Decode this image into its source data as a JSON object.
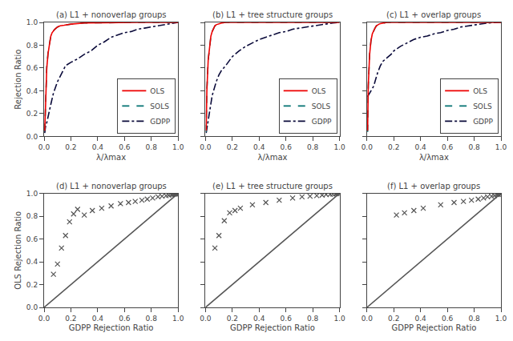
{
  "chart_data": [
    {
      "type": "line",
      "title": "(a) L1 + nonoverlap groups",
      "xlabel": "λ/λmax",
      "ylabel": "Rejection Ratio",
      "series": [
        {
          "name": "OLS",
          "color": "#ee0000",
          "line_style": "solid",
          "x": [
            0.005,
            0.01,
            0.02,
            0.03,
            0.04,
            0.05,
            0.06,
            0.07,
            0.08,
            0.1,
            0.12,
            0.15,
            0.2,
            0.3,
            0.5,
            0.7,
            1.0
          ],
          "values": [
            0.05,
            0.3,
            0.6,
            0.73,
            0.82,
            0.88,
            0.91,
            0.93,
            0.94,
            0.96,
            0.97,
            0.975,
            0.985,
            0.995,
            1.0,
            1.0,
            1.0
          ]
        },
        {
          "name": "SOLS",
          "color": "#007070",
          "line_style": "dash",
          "x": [
            0.005,
            0.01,
            0.02,
            0.03,
            0.04,
            0.05,
            0.06,
            0.07,
            0.08,
            0.1,
            0.12,
            0.15,
            0.2,
            0.3,
            0.5,
            0.7,
            1.0
          ],
          "values": [
            0.05,
            0.31,
            0.61,
            0.74,
            0.83,
            0.88,
            0.91,
            0.93,
            0.94,
            0.96,
            0.97,
            0.975,
            0.985,
            0.995,
            1.0,
            1.0,
            1.0
          ]
        },
        {
          "name": "GDPP",
          "color": "#0a0a3a",
          "line_style": "dashdot",
          "x": [
            0.005,
            0.01,
            0.02,
            0.03,
            0.05,
            0.07,
            0.1,
            0.13,
            0.16,
            0.2,
            0.25,
            0.3,
            0.35,
            0.4,
            0.45,
            0.5,
            0.55,
            0.6,
            0.65,
            0.7,
            0.75,
            0.8,
            0.85,
            0.9,
            0.95,
            1.0
          ],
          "values": [
            0.03,
            0.08,
            0.12,
            0.18,
            0.28,
            0.38,
            0.48,
            0.55,
            0.62,
            0.65,
            0.68,
            0.72,
            0.75,
            0.8,
            0.83,
            0.87,
            0.89,
            0.91,
            0.92,
            0.94,
            0.95,
            0.96,
            0.97,
            0.98,
            0.99,
            1.0
          ]
        }
      ],
      "xlim": [
        0,
        1.0
      ],
      "ylim": [
        0,
        1.0
      ],
      "xticks": [
        {
          "value": 0,
          "label": "0.0"
        },
        0.2,
        0.4,
        0.6,
        0.8,
        {
          "value": 1.0,
          "label": "1.0"
        }
      ],
      "yticks": [
        {
          "value": 0,
          "label": "0.0"
        },
        0.2,
        0.4,
        0.6,
        0.8,
        {
          "value": 1.0,
          "label": "1.0"
        }
      ],
      "grid": false,
      "legend": "lower right"
    },
    {
      "type": "line",
      "title": "(b) L1 + tree structure groups",
      "xlabel": "λ/λmax",
      "series": [
        {
          "name": "OLS",
          "color": "#ee0000",
          "line_style": "solid",
          "x": [
            0.005,
            0.01,
            0.02,
            0.03,
            0.04,
            0.05,
            0.06,
            0.07,
            0.08,
            0.09,
            0.1,
            0.12,
            0.15,
            0.2,
            0.3,
            0.5,
            1.0
          ],
          "values": [
            0.05,
            0.4,
            0.67,
            0.8,
            0.88,
            0.92,
            0.95,
            0.97,
            0.98,
            0.985,
            0.99,
            0.995,
            1.0,
            1.0,
            1.0,
            1.0,
            1.0
          ]
        },
        {
          "name": "SOLS",
          "color": "#007070",
          "line_style": "dash",
          "x": [
            0.005,
            0.01,
            0.02,
            0.03,
            0.04,
            0.05,
            0.06,
            0.07,
            0.08,
            0.09,
            0.1,
            0.12,
            0.15,
            0.2,
            0.3,
            0.5,
            1.0
          ],
          "values": [
            0.04,
            0.41,
            0.67,
            0.8,
            0.88,
            0.92,
            0.95,
            0.97,
            0.98,
            0.985,
            0.99,
            0.995,
            1.0,
            1.0,
            1.0,
            1.0,
            1.0
          ]
        },
        {
          "name": "GDPP",
          "color": "#0a0a3a",
          "line_style": "dashdot",
          "x": [
            0.005,
            0.01,
            0.02,
            0.03,
            0.04,
            0.05,
            0.06,
            0.07,
            0.08,
            0.1,
            0.12,
            0.15,
            0.18,
            0.2,
            0.25,
            0.3,
            0.35,
            0.4,
            0.45,
            0.5,
            0.55,
            0.6,
            0.65,
            0.7,
            0.75,
            0.8,
            0.85,
            0.9,
            0.95,
            1.0
          ],
          "values": [
            0.03,
            0.07,
            0.13,
            0.2,
            0.28,
            0.36,
            0.4,
            0.44,
            0.48,
            0.54,
            0.58,
            0.62,
            0.67,
            0.7,
            0.75,
            0.79,
            0.82,
            0.85,
            0.87,
            0.89,
            0.91,
            0.92,
            0.94,
            0.95,
            0.96,
            0.97,
            0.98,
            0.99,
            0.995,
            1.0
          ]
        }
      ],
      "xlim": [
        0,
        1.0
      ],
      "ylim": [
        0,
        1.0
      ],
      "xticks": [
        {
          "value": 0,
          "label": "0.0"
        },
        0.2,
        0.4,
        0.6,
        0.8,
        {
          "value": 1.0,
          "label": "1.0"
        }
      ],
      "yticks": [
        0,
        0.2,
        0.4,
        0.6,
        0.8,
        1.0
      ],
      "grid": false,
      "legend": "lower right",
      "tick_labels": "x"
    },
    {
      "type": "line",
      "title": "(c) L1 + overlap groups",
      "xlabel": "λ/λmax",
      "series": [
        {
          "name": "OLS",
          "color": "#ee0000",
          "line_style": "solid",
          "x": [
            0.005,
            0.01,
            0.02,
            0.03,
            0.04,
            0.05,
            0.06,
            0.07,
            0.08,
            0.09,
            0.1,
            0.12,
            0.15,
            0.2,
            0.3,
            0.5,
            1.0
          ],
          "values": [
            0.05,
            0.45,
            0.72,
            0.84,
            0.9,
            0.93,
            0.95,
            0.97,
            0.98,
            0.985,
            0.99,
            0.995,
            1.0,
            1.0,
            1.0,
            1.0,
            1.0
          ]
        },
        {
          "name": "SOLS",
          "color": "#007070",
          "line_style": "dash",
          "x": [
            0.005,
            0.01,
            0.02,
            0.03,
            0.04,
            0.05,
            0.06,
            0.07,
            0.08,
            0.09,
            0.1,
            0.12,
            0.15,
            0.2,
            0.3,
            0.5,
            1.0
          ],
          "values": [
            0.04,
            0.44,
            0.72,
            0.84,
            0.9,
            0.93,
            0.95,
            0.97,
            0.98,
            0.985,
            0.99,
            0.995,
            1.0,
            1.0,
            1.0,
            1.0,
            1.0
          ]
        },
        {
          "name": "GDPP",
          "color": "#0a0a3a",
          "line_style": "dashdot",
          "x": [
            0.005,
            0.01,
            0.02,
            0.03,
            0.04,
            0.05,
            0.06,
            0.07,
            0.08,
            0.1,
            0.12,
            0.15,
            0.18,
            0.2,
            0.25,
            0.3,
            0.35,
            0.4,
            0.45,
            0.5,
            0.55,
            0.6,
            0.65,
            0.7,
            0.75,
            0.8,
            0.85,
            0.9,
            0.95,
            1.0
          ],
          "values": [
            0.35,
            0.36,
            0.38,
            0.4,
            0.42,
            0.44,
            0.48,
            0.52,
            0.56,
            0.62,
            0.66,
            0.69,
            0.72,
            0.75,
            0.79,
            0.82,
            0.85,
            0.87,
            0.88,
            0.9,
            0.91,
            0.93,
            0.94,
            0.96,
            0.97,
            0.98,
            0.99,
            0.995,
            0.998,
            1.0
          ]
        }
      ],
      "xlim": [
        0,
        1.0
      ],
      "ylim": [
        0,
        1.0
      ],
      "xticks": [
        {
          "value": 0,
          "label": "0.0"
        },
        0.2,
        0.4,
        0.6,
        0.8,
        {
          "value": 1.0,
          "label": "1.0"
        }
      ],
      "yticks": [
        0,
        0.2,
        0.4,
        0.6,
        0.8,
        1.0
      ],
      "grid": false,
      "legend": "lower right",
      "tick_labels": "x"
    },
    {
      "type": "scatter",
      "title": "(d) L1 + nonoverlap groups",
      "xlabel": "GDPP Rejection Ratio",
      "ylabel": "OLS Rejection Ratio",
      "series": [
        {
          "type": "scatter",
          "marker": "x",
          "color": "#555555",
          "x": [
            0.07,
            0.1,
            0.13,
            0.16,
            0.19,
            0.22,
            0.25,
            0.3,
            0.36,
            0.43,
            0.5,
            0.57,
            0.63,
            0.68,
            0.73,
            0.77,
            0.81,
            0.85,
            0.88,
            0.91,
            0.93,
            0.95,
            0.96,
            0.97,
            0.975,
            0.98,
            0.985,
            0.99,
            0.995,
            1.0
          ],
          "values": [
            0.29,
            0.38,
            0.52,
            0.63,
            0.75,
            0.82,
            0.86,
            0.81,
            0.85,
            0.87,
            0.89,
            0.91,
            0.92,
            0.93,
            0.94,
            0.95,
            0.96,
            0.97,
            0.975,
            0.98,
            0.985,
            0.99,
            0.992,
            0.994,
            0.995,
            0.996,
            0.997,
            0.998,
            0.999,
            1.0
          ]
        },
        {
          "type": "line",
          "line_style": "solid",
          "color": "#555555",
          "x": [
            0,
            1
          ],
          "values": [
            0,
            1
          ]
        }
      ],
      "xlim": [
        0,
        1.0
      ],
      "ylim": [
        0,
        1.0
      ],
      "xticks": [
        {
          "value": 0,
          "label": "0.0"
        },
        0.2,
        0.4,
        0.6,
        0.8,
        {
          "value": 1.0,
          "label": "1.0"
        }
      ],
      "yticks": [
        {
          "value": 0,
          "label": "0.0"
        },
        0.2,
        0.4,
        0.6,
        0.8,
        {
          "value": 1.0,
          "label": "1.0"
        }
      ],
      "grid": false
    },
    {
      "type": "scatter",
      "title": "(e) L1 + tree structure groups",
      "xlabel": "GDPP Rejection Ratio",
      "series": [
        {
          "type": "scatter",
          "marker": "x",
          "color": "#555555",
          "x": [
            0.07,
            0.1,
            0.14,
            0.18,
            0.22,
            0.26,
            0.35,
            0.45,
            0.55,
            0.65,
            0.72,
            0.78,
            0.83,
            0.87,
            0.9,
            0.93,
            0.95,
            0.97,
            0.98,
            0.99,
            0.995,
            1.0
          ],
          "values": [
            0.52,
            0.63,
            0.76,
            0.83,
            0.85,
            0.87,
            0.9,
            0.92,
            0.94,
            0.96,
            0.97,
            0.975,
            0.98,
            0.985,
            0.99,
            0.992,
            0.995,
            0.997,
            0.998,
            0.999,
            0.9995,
            1.0
          ]
        },
        {
          "type": "line",
          "line_style": "solid",
          "color": "#555555",
          "x": [
            0,
            1
          ],
          "values": [
            0,
            1
          ]
        }
      ],
      "xlim": [
        0,
        1.0
      ],
      "ylim": [
        0,
        1.0
      ],
      "xticks": [
        {
          "value": 0,
          "label": "0.0"
        },
        0.2,
        0.4,
        0.6,
        0.8,
        {
          "value": 1.0,
          "label": "1.0"
        }
      ],
      "yticks": [
        0,
        0.2,
        0.4,
        0.6,
        0.8,
        1.0
      ],
      "grid": false,
      "tick_labels": "x"
    },
    {
      "type": "scatter",
      "title": "(f) L1 + overlap groups",
      "xlabel": "GDPP Rejection Ratio",
      "series": [
        {
          "type": "scatter",
          "marker": "x",
          "color": "#555555",
          "x": [
            0.22,
            0.28,
            0.35,
            0.42,
            0.55,
            0.65,
            0.72,
            0.78,
            0.83,
            0.87,
            0.9,
            0.93,
            0.95,
            0.97,
            0.98,
            0.99,
            0.995,
            1.0
          ],
          "values": [
            0.81,
            0.83,
            0.85,
            0.87,
            0.9,
            0.92,
            0.93,
            0.94,
            0.95,
            0.96,
            0.97,
            0.975,
            0.98,
            0.99,
            0.992,
            0.995,
            0.997,
            1.0
          ]
        },
        {
          "type": "line",
          "line_style": "solid",
          "color": "#555555",
          "x": [
            0,
            1
          ],
          "values": [
            0,
            1
          ]
        }
      ],
      "xlim": [
        0,
        1.0
      ],
      "ylim": [
        0,
        1.0
      ],
      "xticks": [
        {
          "value": 0,
          "label": "0.0"
        },
        0.2,
        0.4,
        0.6,
        0.8,
        {
          "value": 1.0,
          "label": "1.0"
        }
      ],
      "yticks": [
        0,
        0.2,
        0.4,
        0.6,
        0.8,
        1.0
      ],
      "grid": false,
      "tick_labels": "x"
    }
  ]
}
